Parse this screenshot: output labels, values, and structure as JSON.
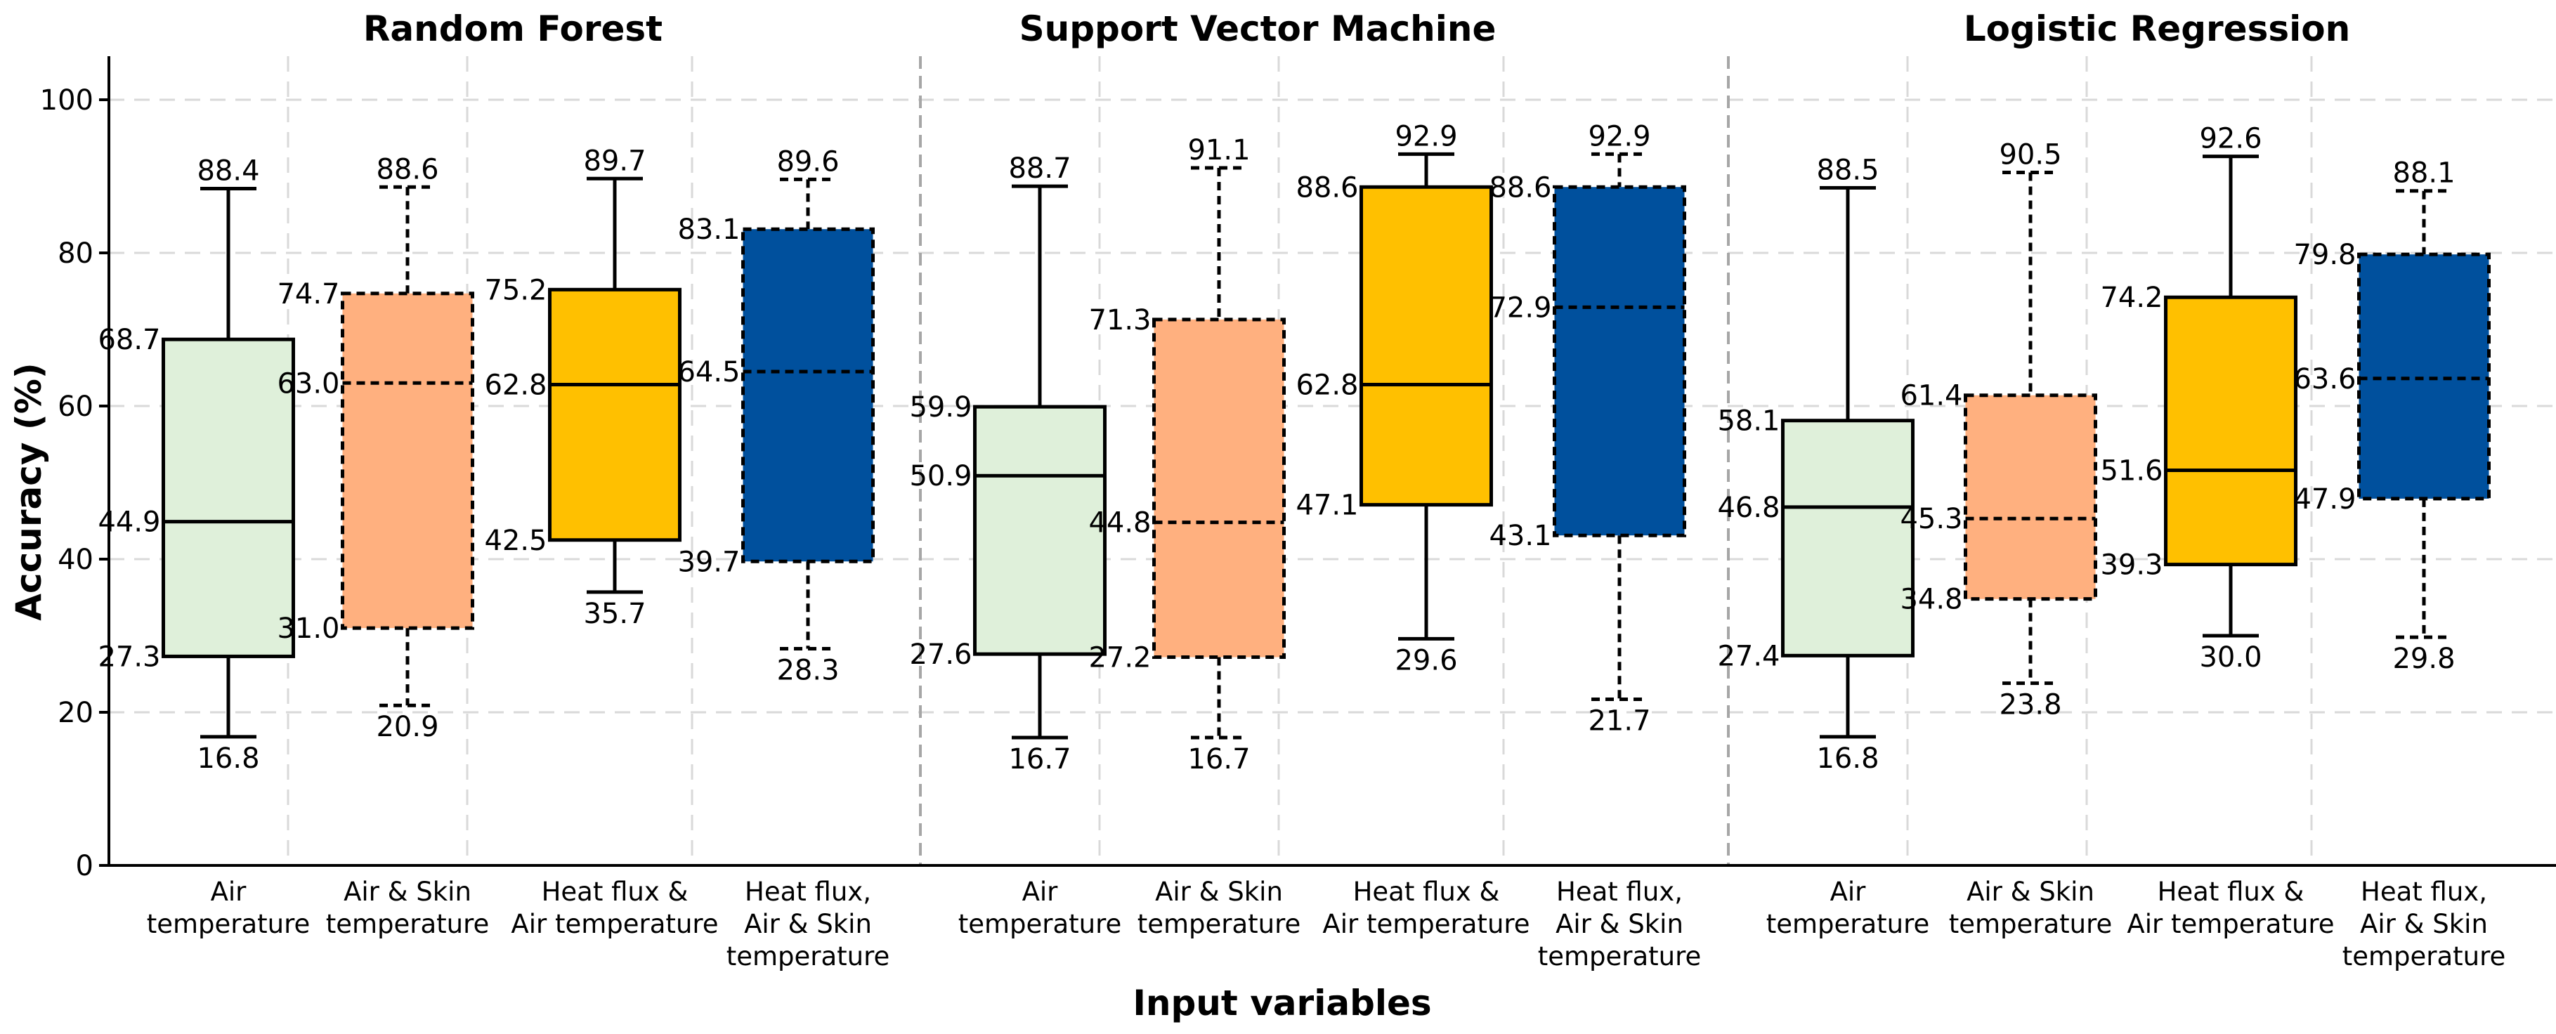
{
  "chart_data": {
    "type": "box",
    "ylabel": "Accuracy (%)",
    "xlabel": "Input variables",
    "ylim": [
      0,
      106
    ],
    "yticks": [
      0,
      20,
      40,
      60,
      80,
      100
    ],
    "grid": true,
    "box_styles": [
      {
        "color": "#dff0da",
        "line": "solid"
      },
      {
        "color": "#ffb07f",
        "line": "dashed"
      },
      {
        "color": "#ffc000",
        "line": "solid"
      },
      {
        "color": "#00509d",
        "line": "dashed"
      }
    ],
    "panels": [
      {
        "title": "Random Forest",
        "boxes": [
          {
            "category": [
              "Air",
              "temperature"
            ],
            "min": 16.8,
            "q1": 27.3,
            "median": 44.9,
            "q3": 68.7,
            "max": 88.4
          },
          {
            "category": [
              "Air & Skin",
              "temperature"
            ],
            "min": 20.9,
            "q1": 31.0,
            "median": 63.0,
            "q3": 74.7,
            "max": 88.6
          },
          {
            "category": [
              "Heat flux &",
              "Air temperature"
            ],
            "min": 35.7,
            "q1": 42.5,
            "median": 62.8,
            "q3": 75.2,
            "max": 89.7
          },
          {
            "category": [
              "Heat flux,",
              "Air & Skin",
              "temperature"
            ],
            "min": 28.3,
            "q1": 39.7,
            "median": 64.5,
            "q3": 83.1,
            "max": 89.6
          }
        ]
      },
      {
        "title": "Support Vector Machine",
        "boxes": [
          {
            "category": [
              "Air",
              "temperature"
            ],
            "min": 16.7,
            "q1": 27.6,
            "median": 50.9,
            "q3": 59.9,
            "max": 88.7
          },
          {
            "category": [
              "Air & Skin",
              "temperature"
            ],
            "min": 16.7,
            "q1": 27.2,
            "median": 44.8,
            "q3": 71.3,
            "max": 91.1
          },
          {
            "category": [
              "Heat flux &",
              "Air temperature"
            ],
            "min": 29.6,
            "q1": 47.1,
            "median": 62.8,
            "q3": 88.6,
            "max": 92.9
          },
          {
            "category": [
              "Heat flux,",
              "Air & Skin",
              "temperature"
            ],
            "min": 21.7,
            "q1": 43.1,
            "median": 72.9,
            "q3": 88.6,
            "max": 92.9
          }
        ]
      },
      {
        "title": "Logistic Regression",
        "boxes": [
          {
            "category": [
              "Air",
              "temperature"
            ],
            "min": 16.8,
            "q1": 27.4,
            "median": 46.8,
            "q3": 58.1,
            "max": 88.5
          },
          {
            "category": [
              "Air & Skin",
              "temperature"
            ],
            "min": 23.8,
            "q1": 34.8,
            "median": 45.3,
            "q3": 61.4,
            "max": 90.5
          },
          {
            "category": [
              "Heat flux &",
              "Air temperature"
            ],
            "min": 30.0,
            "q1": 39.3,
            "median": 51.6,
            "q3": 74.2,
            "max": 92.6
          },
          {
            "category": [
              "Heat flux,",
              "Air & Skin",
              "temperature"
            ],
            "min": 29.8,
            "q1": 47.9,
            "median": 63.6,
            "q3": 79.8,
            "max": 88.1
          }
        ]
      }
    ]
  }
}
